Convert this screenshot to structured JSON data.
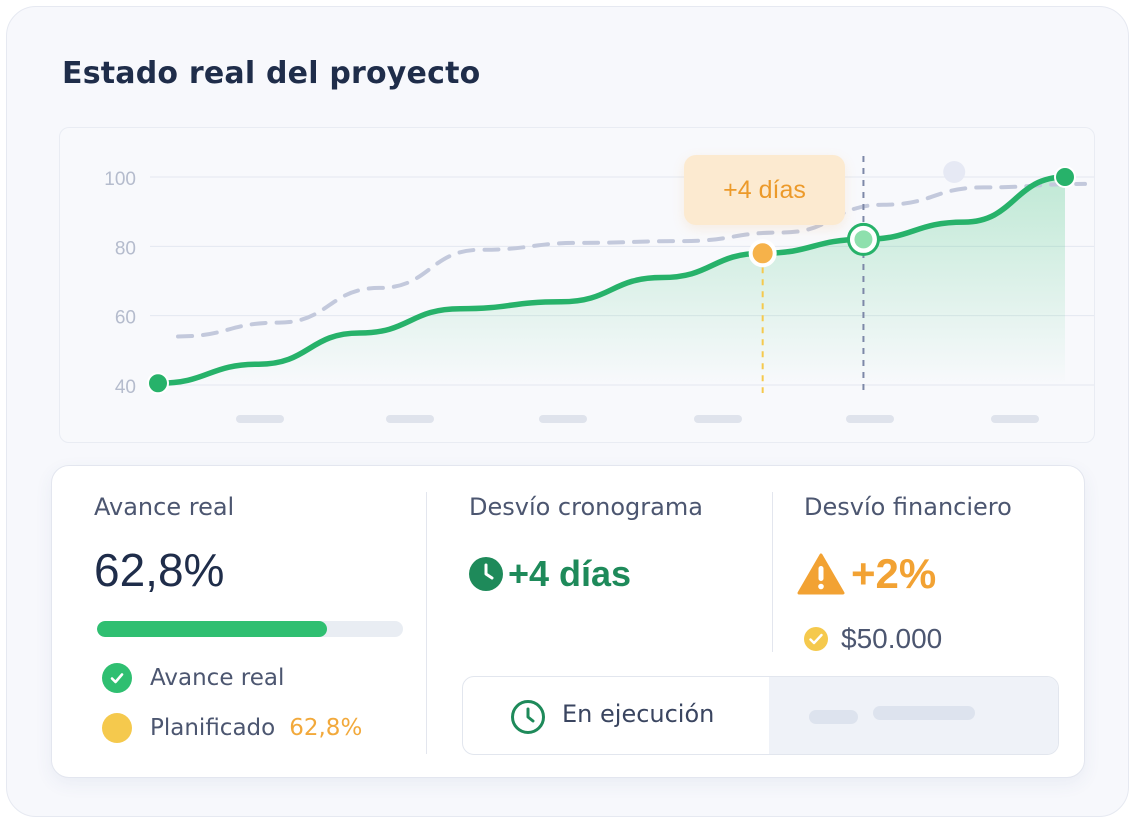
{
  "title": "Estado real del proyecto",
  "colors": {
    "accent_green": "#2fbf71",
    "accent_orange": "#f2a233",
    "planned_dashed": "#c3c9dc",
    "text_dark": "#1f2d4a"
  },
  "chart_data": {
    "type": "line",
    "y_ticks": [
      "100",
      "80",
      "60",
      "40"
    ],
    "ylim": [
      40,
      100
    ],
    "grid": true,
    "series": [
      {
        "values": [
          40.5,
          46,
          55,
          62,
          64,
          71,
          78,
          82,
          87,
          100
        ]
      },
      {
        "values": [
          54,
          58,
          68,
          79,
          81,
          81.5,
          84,
          92,
          97,
          98
        ]
      }
    ],
    "x_labels_visible": false,
    "annotation": {
      "text": "+4 días",
      "index": 6
    }
  },
  "stats": {
    "avance": {
      "label": "Avance real",
      "value": "62,8%",
      "progress": 0.75,
      "legend": [
        {
          "icon": "check-circle-icon",
          "label": "Avance real"
        },
        {
          "icon": "dot-icon",
          "label": "Planificado",
          "value": "62,8%"
        }
      ]
    },
    "cronograma": {
      "label": "Desvío cronograma",
      "icon": "clock-icon",
      "value": "+4 días"
    },
    "financiero": {
      "label": "Desvío financiero",
      "icon": "warning-icon",
      "value": "+2%",
      "sub_icon": "check-circle-icon",
      "sub_value": "$50.000"
    },
    "status": {
      "icon": "clock-outline-icon",
      "label": "En ejecución"
    }
  }
}
